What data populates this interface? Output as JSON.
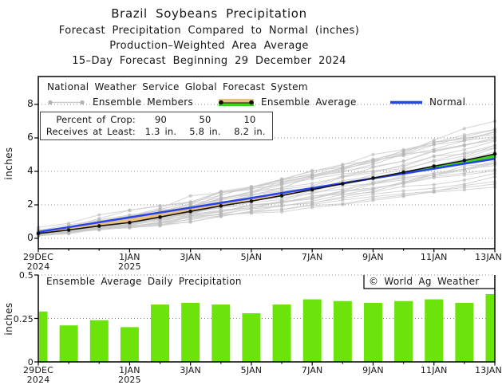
{
  "titles": [
    "Brazil Soybeans Precipitation",
    "Forecast Precipitation Compared to Normal (inches)",
    "Production–Weighted Area Average",
    "15–Day Forecast Beginning 29 December 2024"
  ],
  "top_chart": {
    "legend_header": "National Weather Service Global Forecast System",
    "legend": {
      "members": "Ensemble Members",
      "average": "Ensemble Average",
      "normal": "Normal"
    },
    "stats": {
      "row1_label": "Percent of Crop:",
      "row1_values": [
        "90",
        "50",
        "10"
      ],
      "row2_label": "Receives at Least:",
      "row2_values": [
        "1.3 in.",
        "5.8 in.",
        "8.2 in."
      ]
    },
    "ylabel": "inches",
    "yticks": [
      "0",
      "2",
      "4",
      "6",
      "8"
    ]
  },
  "bottom_chart": {
    "title": "Ensemble Average Daily Precipitation",
    "credit": "© World Ag Weather",
    "ylabel": "inches",
    "yticks": [
      "0",
      "0.25",
      "0.5"
    ]
  },
  "x_axis": {
    "major": [
      {
        "day": 0,
        "label": "29DEC",
        "year": "2024"
      },
      {
        "day": 3,
        "label": "1JAN",
        "year": "2025"
      },
      {
        "day": 5,
        "label": "3JAN"
      },
      {
        "day": 7,
        "label": "5JAN"
      },
      {
        "day": 9,
        "label": "7JAN"
      },
      {
        "day": 11,
        "label": "9JAN"
      },
      {
        "day": 13,
        "label": "11JAN"
      },
      {
        "day": 15,
        "label": "13JAN"
      }
    ],
    "minor_days": [
      1,
      2,
      4,
      6,
      8,
      10,
      12,
      14
    ]
  },
  "colors": {
    "bar_green": "#6ce30b",
    "normal_blue": "#2543ee",
    "average_black": "#111111",
    "member_line_gray": "#c9c9c9",
    "member_dot_gray": "#b2b2b2",
    "fill_below_normal_tan": "#e8c27c",
    "fill_above_normal_green": "#3fd11c",
    "frame_black": "#000000",
    "grid_gray": "#8a8a8a"
  },
  "chart_data": [
    {
      "type": "line",
      "title": "Forecast Precipitation Compared to Normal (cumulative)",
      "x": [
        "29DEC",
        "30DEC",
        "31DEC",
        "1JAN",
        "2JAN",
        "3JAN",
        "4JAN",
        "5JAN",
        "6JAN",
        "7JAN",
        "8JAN",
        "9JAN",
        "10JAN",
        "11JAN",
        "12JAN",
        "13JAN"
      ],
      "ylabel": "inches",
      "ylim": [
        0,
        8
      ],
      "yticks": [
        0,
        2,
        4,
        6,
        8
      ],
      "grid": "dotted horizontal",
      "legend_position": "top inside",
      "series": [
        {
          "name": "Ensemble Average",
          "color": "#111111",
          "values": [
            0.29,
            0.5,
            0.74,
            0.94,
            1.27,
            1.61,
            1.94,
            2.22,
            2.55,
            2.91,
            3.26,
            3.6,
            3.95,
            4.31,
            4.65,
            5.04
          ]
        },
        {
          "name": "Normal",
          "color": "#2543ee",
          "values": [
            0.38,
            0.67,
            0.96,
            1.25,
            1.54,
            1.83,
            2.12,
            2.41,
            2.71,
            3.0,
            3.29,
            3.58,
            3.87,
            4.16,
            4.46,
            4.75
          ]
        }
      ],
      "ensemble_members": {
        "count": 30,
        "start_approx": 0.3,
        "end_value_range": [
          2.9,
          7.0
        ],
        "style": "light gray lines with round markers at each day, fanning out"
      },
      "fills": {
        "average_below_normal": "tan wedge between lines",
        "average_above_normal": "green wedge between lines (from ~9JAN to 13JAN)"
      }
    },
    {
      "type": "bar",
      "title": "Ensemble Average Daily Precipitation",
      "categories": [
        "29DEC",
        "30DEC",
        "31DEC",
        "1JAN",
        "2JAN",
        "3JAN",
        "4JAN",
        "5JAN",
        "6JAN",
        "7JAN",
        "8JAN",
        "9JAN",
        "10JAN",
        "11JAN",
        "12JAN",
        "13JAN"
      ],
      "values": [
        0.29,
        0.21,
        0.24,
        0.2,
        0.33,
        0.34,
        0.33,
        0.28,
        0.33,
        0.36,
        0.35,
        0.34,
        0.35,
        0.36,
        0.34,
        0.39
      ],
      "ylabel": "inches",
      "ylim": [
        0,
        0.5
      ],
      "yticks": [
        0,
        0.25,
        0.5
      ],
      "bar_color": "#6ce30b",
      "grid": "dotted horizontal at 0.25 and 0.5"
    }
  ]
}
